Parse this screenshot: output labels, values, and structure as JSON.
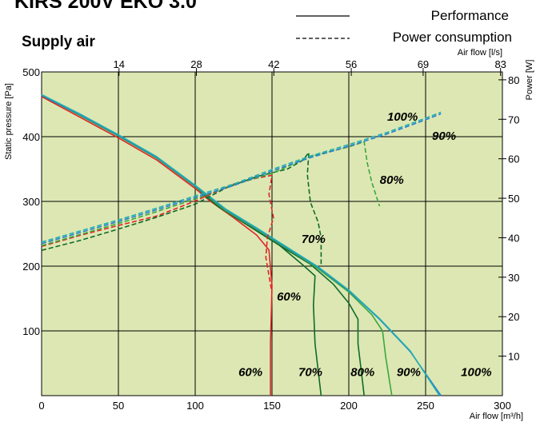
{
  "header": {
    "title": "KIRS 200V EKO 3.0",
    "subtitle": "Supply air"
  },
  "legend": {
    "solid_label": "Performance",
    "dashed_label": "Power consumption"
  },
  "colors": {
    "plot_bg": "#dde7b3",
    "grid": "#000000",
    "red": "#e0262b",
    "dark_green": "#0e6b2a",
    "mid_green": "#3aa83d",
    "blue": "#2a7fd0",
    "teal": "#20b0b0"
  },
  "chart_data": {
    "type": "line",
    "title": "KIRS 200V EKO 3.0",
    "subtitle": "Supply air",
    "xlabel": "Air flow [m³/h]",
    "ylabel": "Static pressure [Pa]",
    "x2label": "Air flow [l/s]",
    "y2label": "Power [W]",
    "xlim": [
      0,
      300
    ],
    "ylim": [
      0,
      500
    ],
    "y2lim": [
      0,
      82
    ],
    "grid": true,
    "legend_position": "top-right",
    "x_ticks": [
      {
        "value": 0,
        "label": "0"
      },
      {
        "value": 50,
        "label": "50"
      },
      {
        "value": 100,
        "label": "100"
      },
      {
        "value": 150,
        "label": "150"
      },
      {
        "value": 200,
        "label": "200"
      },
      {
        "value": 250,
        "label": "250"
      },
      {
        "value": 300,
        "label": "300"
      }
    ],
    "y_ticks": [
      {
        "value": 100,
        "label": "100"
      },
      {
        "value": 200,
        "label": "200"
      },
      {
        "value": 300,
        "label": "300"
      },
      {
        "value": 400,
        "label": "400"
      },
      {
        "value": 500,
        "label": "500"
      }
    ],
    "x2_ticks": [
      {
        "value": 50.4,
        "label": "14"
      },
      {
        "value": 100.8,
        "label": "28"
      },
      {
        "value": 151.2,
        "label": "42"
      },
      {
        "value": 201.6,
        "label": "56"
      },
      {
        "value": 248.4,
        "label": "69"
      },
      {
        "value": 298.8,
        "label": "83"
      }
    ],
    "y2_ticks": [
      {
        "value": 10,
        "label": "10"
      },
      {
        "value": 20,
        "label": "20"
      },
      {
        "value": 30,
        "label": "30"
      },
      {
        "value": 40,
        "label": "40"
      },
      {
        "value": 50,
        "label": "50"
      },
      {
        "value": 60,
        "label": "60"
      },
      {
        "value": 70,
        "label": "70"
      },
      {
        "value": 80,
        "label": "80"
      }
    ],
    "series": [
      {
        "name": "60%",
        "kind": "performance",
        "color": "#e0262b",
        "points": [
          [
            0,
            462
          ],
          [
            25,
            430
          ],
          [
            50,
            398
          ],
          [
            75,
            364
          ],
          [
            100,
            320
          ],
          [
            110,
            300
          ],
          [
            125,
            275
          ],
          [
            140,
            248
          ],
          [
            148,
            225
          ],
          [
            150,
            170
          ],
          [
            149,
            80
          ],
          [
            149,
            0
          ]
        ]
      },
      {
        "name": "70%",
        "kind": "performance",
        "color": "#0e6b2a",
        "points": [
          [
            0,
            464
          ],
          [
            25,
            433
          ],
          [
            50,
            401
          ],
          [
            75,
            367
          ],
          [
            100,
            323
          ],
          [
            115,
            292
          ],
          [
            135,
            262
          ],
          [
            155,
            232
          ],
          [
            170,
            202
          ],
          [
            178,
            185
          ],
          [
            177,
            140
          ],
          [
            178,
            80
          ],
          [
            182,
            0
          ]
        ]
      },
      {
        "name": "80%",
        "kind": "performance",
        "color": "#0e6b2a",
        "points": [
          [
            0,
            464
          ],
          [
            25,
            433
          ],
          [
            50,
            401
          ],
          [
            75,
            367
          ],
          [
            100,
            323
          ],
          [
            115,
            292
          ],
          [
            135,
            262
          ],
          [
            155,
            232
          ],
          [
            175,
            203
          ],
          [
            190,
            172
          ],
          [
            200,
            143
          ],
          [
            206,
            118
          ],
          [
            206,
            80
          ],
          [
            208,
            40
          ],
          [
            210,
            0
          ]
        ]
      },
      {
        "name": "90%",
        "kind": "performance",
        "color": "#3aa83d",
        "points": [
          [
            0,
            464
          ],
          [
            25,
            433
          ],
          [
            50,
            401
          ],
          [
            75,
            367
          ],
          [
            100,
            323
          ],
          [
            120,
            285
          ],
          [
            140,
            257
          ],
          [
            160,
            227
          ],
          [
            180,
            196
          ],
          [
            200,
            160
          ],
          [
            215,
            125
          ],
          [
            222,
            100
          ],
          [
            224,
            60
          ],
          [
            228,
            0
          ]
        ]
      },
      {
        "name": "100%",
        "kind": "performance",
        "color": "#2a7fd0",
        "points": [
          [
            0,
            464
          ],
          [
            25,
            434
          ],
          [
            50,
            402
          ],
          [
            75,
            368
          ],
          [
            100,
            324
          ],
          [
            120,
            287
          ],
          [
            140,
            258
          ],
          [
            160,
            228
          ],
          [
            180,
            198
          ],
          [
            200,
            162
          ],
          [
            220,
            118
          ],
          [
            240,
            68
          ],
          [
            260,
            0
          ]
        ]
      },
      {
        "name": "100%",
        "kind": "performance",
        "color": "#20b0b0",
        "points": [
          [
            0,
            465
          ],
          [
            25,
            435
          ],
          [
            50,
            403
          ],
          [
            75,
            369
          ],
          [
            100,
            325
          ],
          [
            120,
            288
          ],
          [
            140,
            259
          ],
          [
            160,
            229
          ],
          [
            180,
            199
          ],
          [
            200,
            163
          ],
          [
            220,
            119
          ],
          [
            240,
            69
          ],
          [
            259,
            0
          ]
        ]
      },
      {
        "name": "60%",
        "kind": "power",
        "color": "#e0262b",
        "points": [
          [
            0,
            37.8
          ],
          [
            25,
            40.6
          ],
          [
            50,
            43.1
          ],
          [
            75,
            45.5
          ],
          [
            100,
            49.3
          ],
          [
            125,
            53.6
          ],
          [
            140,
            55.1
          ],
          [
            150,
            55.8
          ],
          [
            148,
            51
          ],
          [
            151,
            45
          ],
          [
            147,
            40
          ],
          [
            146,
            35
          ],
          [
            150,
            26
          ]
        ]
      },
      {
        "name": "70%",
        "kind": "power",
        "color": "#0e6b2a",
        "points": [
          [
            0,
            36.8
          ],
          [
            25,
            39.3
          ],
          [
            50,
            42.2
          ],
          [
            75,
            45.2
          ],
          [
            100,
            48.5
          ],
          [
            120,
            52.6
          ],
          [
            140,
            55.5
          ],
          [
            160,
            57.4
          ],
          [
            170,
            59.6
          ],
          [
            174,
            61.6
          ],
          [
            173,
            56
          ],
          [
            175,
            49
          ],
          [
            180,
            44
          ],
          [
            182,
            40
          ],
          [
            182,
            33
          ]
        ]
      },
      {
        "name": "80%",
        "kind": "power",
        "color": "#3aa83d",
        "points": [
          [
            0,
            38.0
          ],
          [
            25,
            40.8
          ],
          [
            50,
            43.6
          ],
          [
            75,
            46.6
          ],
          [
            100,
            49.8
          ],
          [
            125,
            53.4
          ],
          [
            150,
            56.3
          ],
          [
            175,
            60.6
          ],
          [
            200,
            63.0
          ],
          [
            210,
            64.3
          ],
          [
            212,
            59
          ],
          [
            215,
            54
          ],
          [
            220,
            48
          ]
        ]
      },
      {
        "name": "90%",
        "kind": "power",
        "color": "#2a7fd0",
        "points": [
          [
            0,
            38.5
          ],
          [
            25,
            41.3
          ],
          [
            50,
            44.1
          ],
          [
            75,
            47.1
          ],
          [
            100,
            50.2
          ],
          [
            125,
            53.2
          ],
          [
            150,
            56.9
          ],
          [
            175,
            60.3
          ],
          [
            200,
            63.2
          ],
          [
            225,
            66.3
          ],
          [
            250,
            69.9
          ],
          [
            260,
            71.4
          ]
        ]
      },
      {
        "name": "100%",
        "kind": "power",
        "color": "#20b0b0",
        "points": [
          [
            0,
            38.9
          ],
          [
            25,
            41.7
          ],
          [
            50,
            44.5
          ],
          [
            75,
            47.5
          ],
          [
            100,
            50.6
          ],
          [
            125,
            53.6
          ],
          [
            150,
            57.3
          ],
          [
            175,
            60.7
          ],
          [
            200,
            63.6
          ],
          [
            225,
            66.7
          ],
          [
            250,
            70.3
          ],
          [
            260,
            71.8
          ]
        ]
      }
    ],
    "annotations": [
      {
        "text": "100%",
        "x": 235,
        "y": 425
      },
      {
        "text": "90%",
        "x": 262,
        "y": 395
      },
      {
        "text": "80%",
        "x": 228,
        "y": 327
      },
      {
        "text": "70%",
        "x": 177,
        "y": 236
      },
      {
        "text": "60%",
        "x": 161,
        "y": 147
      },
      {
        "text": "60%",
        "x": 136,
        "y": 30
      },
      {
        "text": "70%",
        "x": 175,
        "y": 30
      },
      {
        "text": "80%",
        "x": 209,
        "y": 30
      },
      {
        "text": "90%",
        "x": 239,
        "y": 30
      },
      {
        "text": "100%",
        "x": 283,
        "y": 30
      }
    ]
  }
}
